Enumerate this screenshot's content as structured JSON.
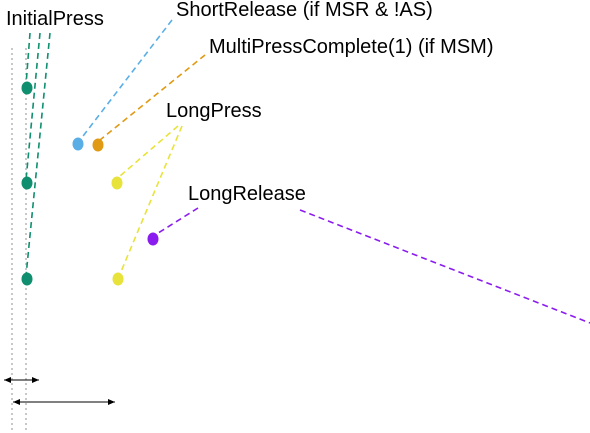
{
  "colors": {
    "initial_press": "#0f8f6f",
    "short_release": "#5aaee6",
    "multi_press_complete": "#e09a14",
    "long_press": "#e8e33a",
    "long_release": "#8a1cf0",
    "guide": "#bbbbbb",
    "text": "#000000"
  },
  "labels": {
    "initial_press": "InitialPress",
    "short_release": "ShortRelease (if MSR & !AS)",
    "multi_press_complete": "MultiPressComplete(1) (if MSM)",
    "long_press": "LongPress",
    "long_release": "LongRelease"
  }
}
